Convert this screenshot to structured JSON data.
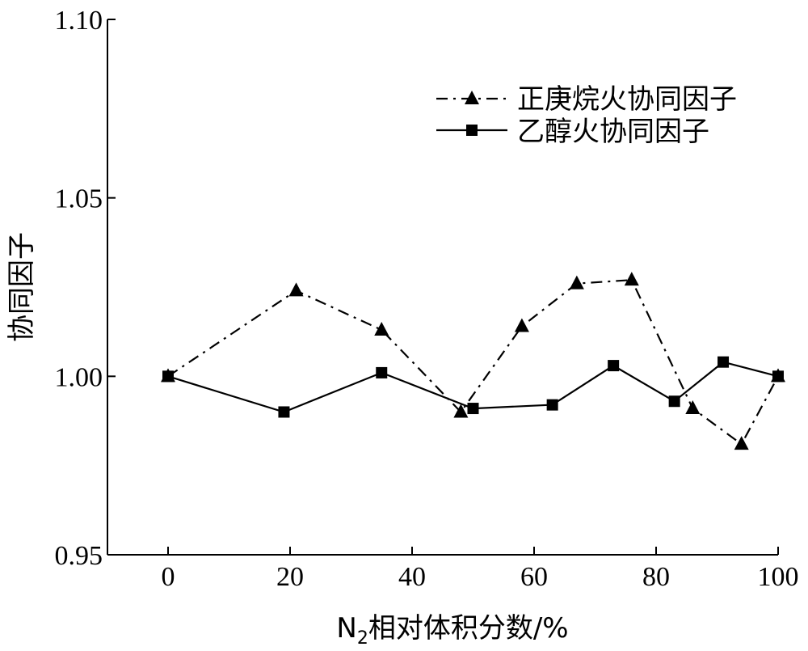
{
  "chart_data": {
    "type": "line",
    "xlabel_prefix": "N",
    "xlabel_sub": "2",
    "xlabel_suffix": "相对体积分数/%",
    "ylabel": "协同因子",
    "xlim": [
      -10,
      100
    ],
    "ylim": [
      0.95,
      1.1
    ],
    "xticks": [
      0,
      20,
      40,
      60,
      80,
      100
    ],
    "yticks": [
      0.95,
      1.0,
      1.05,
      1.1
    ],
    "ytick_labels": [
      "0.95",
      "1.00",
      "1.05",
      "1.10"
    ],
    "legend_position": "top-right",
    "series": [
      {
        "name": "正庚烷火协同因子",
        "marker": "triangle",
        "line_style": "dash-dot",
        "x": [
          0,
          21,
          35,
          48,
          58,
          67,
          76,
          86,
          94,
          100
        ],
        "y": [
          1.0,
          1.024,
          1.013,
          0.99,
          1.014,
          1.026,
          1.027,
          0.991,
          0.981,
          1.0
        ]
      },
      {
        "name": "乙醇火协同因子",
        "marker": "square",
        "line_style": "solid",
        "x": [
          0,
          19,
          35,
          50,
          63,
          73,
          83,
          91,
          100
        ],
        "y": [
          1.0,
          0.99,
          1.001,
          0.991,
          0.992,
          1.003,
          0.993,
          1.004,
          1.0
        ]
      }
    ]
  }
}
